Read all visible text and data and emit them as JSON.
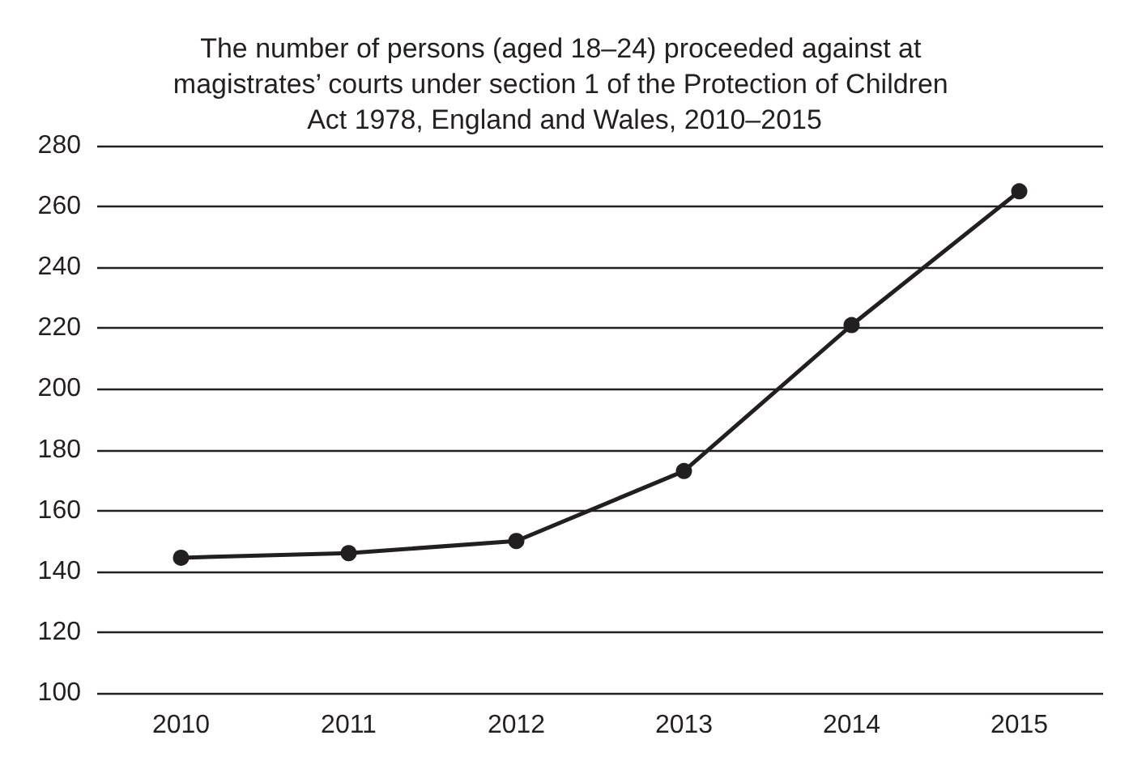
{
  "chart_data": {
    "type": "line",
    "title": "The number of persons (aged 18–24) proceeded against at magistrates’ courts under section 1 of the Protection of Children Act 1978, England and Wales, 2010–2015",
    "categories": [
      "2010",
      "2011",
      "2012",
      "2013",
      "2014",
      "2015"
    ],
    "series": [
      {
        "color": "#231f20",
        "values": [
          144.5,
          146,
          150,
          173,
          221,
          265
        ]
      }
    ],
    "ylim": [
      100,
      280
    ],
    "yticks": [
      100,
      120,
      140,
      160,
      180,
      200,
      220,
      240,
      260,
      280
    ],
    "grid": "y",
    "marker": "circle",
    "line_style": "solid"
  }
}
